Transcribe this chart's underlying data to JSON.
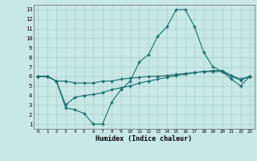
{
  "xlabel": "Humidex (Indice chaleur)",
  "xlim": [
    -0.5,
    23.5
  ],
  "ylim": [
    0.5,
    13.5
  ],
  "xticks": [
    0,
    1,
    2,
    3,
    4,
    5,
    6,
    7,
    8,
    9,
    10,
    11,
    12,
    13,
    14,
    15,
    16,
    17,
    18,
    19,
    20,
    21,
    22,
    23
  ],
  "yticks": [
    1,
    2,
    3,
    4,
    5,
    6,
    7,
    8,
    9,
    10,
    11,
    12,
    13
  ],
  "bg_color": "#c8e8e8",
  "line_color": "#1a6b6b",
  "grid_color": "#aacece",
  "line1_x": [
    0,
    1,
    2,
    3,
    4,
    5,
    6,
    7,
    8,
    9,
    10,
    11,
    12,
    13,
    14,
    15,
    16,
    17,
    18,
    19,
    20,
    21,
    22,
    23
  ],
  "line1_y": [
    6.0,
    6.0,
    5.5,
    2.7,
    2.5,
    2.1,
    1.0,
    1.0,
    3.3,
    4.6,
    5.5,
    7.5,
    8.3,
    10.2,
    11.2,
    13.0,
    13.0,
    11.2,
    8.5,
    7.0,
    6.5,
    5.7,
    5.0,
    6.0
  ],
  "line2_x": [
    0,
    1,
    2,
    3,
    4,
    5,
    6,
    7,
    8,
    9,
    10,
    11,
    12,
    13,
    14,
    15,
    16,
    17,
    18,
    19,
    20,
    21,
    22,
    23
  ],
  "line2_y": [
    6.0,
    6.0,
    5.5,
    5.5,
    5.3,
    5.3,
    5.3,
    5.5,
    5.5,
    5.7,
    5.8,
    5.9,
    6.0,
    6.0,
    6.1,
    6.2,
    6.3,
    6.4,
    6.5,
    6.5,
    6.5,
    6.0,
    5.6,
    6.0
  ],
  "line3_x": [
    0,
    1,
    2,
    3,
    4,
    5,
    6,
    7,
    8,
    9,
    10,
    11,
    12,
    13,
    14,
    15,
    16,
    17,
    18,
    19,
    20,
    21,
    22,
    23
  ],
  "line3_y": [
    6.0,
    6.0,
    5.5,
    3.0,
    3.8,
    4.0,
    4.1,
    4.3,
    4.6,
    4.8,
    5.0,
    5.3,
    5.5,
    5.7,
    5.9,
    6.1,
    6.2,
    6.4,
    6.5,
    6.6,
    6.6,
    6.1,
    5.7,
    6.0
  ]
}
